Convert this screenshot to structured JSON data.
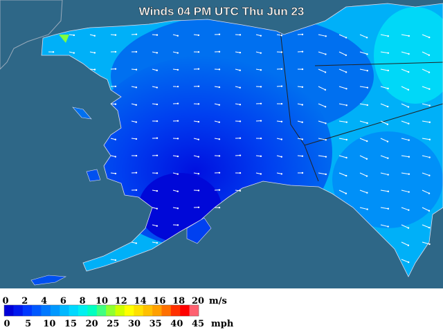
{
  "title": "Winds 04 PM UTC Thu Jun 23",
  "legend": {
    "ms_ticks": [
      0,
      2,
      4,
      6,
      8,
      10,
      12,
      14,
      16,
      18,
      20
    ],
    "ms_unit": "m/s",
    "mph_ticks": [
      0,
      5,
      10,
      15,
      20,
      25,
      30,
      35,
      40,
      45
    ],
    "mph_unit": "mph",
    "colors": [
      "#0000d8",
      "#0018ee",
      "#0038ff",
      "#0058ff",
      "#0078ff",
      "#0098ff",
      "#00b8ff",
      "#00d8ff",
      "#00f0f0",
      "#00ffc0",
      "#40ff80",
      "#90ff30",
      "#d0ff00",
      "#ffff00",
      "#ffe000",
      "#ffc000",
      "#ffa000",
      "#ff7000",
      "#ff3000",
      "#ff0000",
      "#ff6070"
    ]
  }
}
